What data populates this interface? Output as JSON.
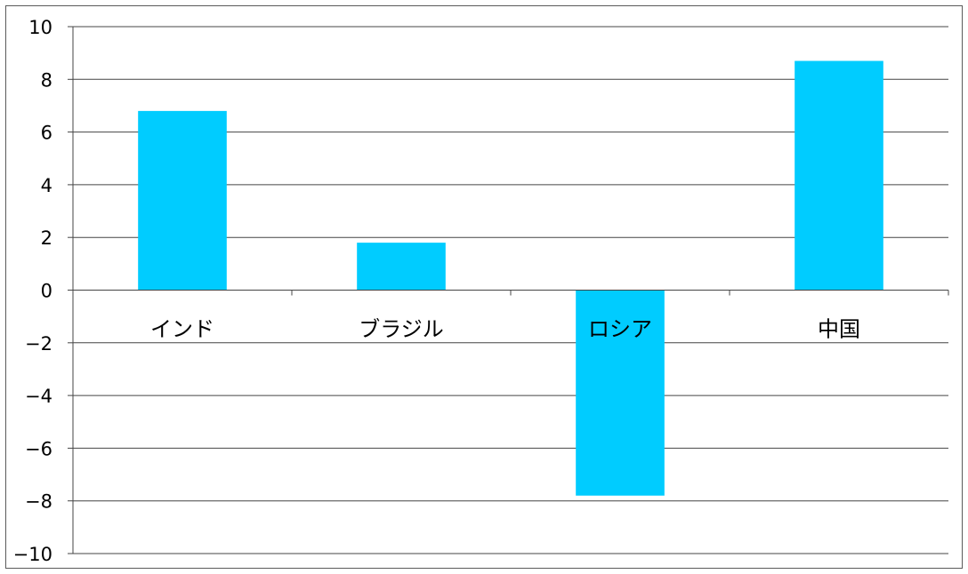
{
  "chart_data": {
    "type": "bar",
    "categories": [
      "インド",
      "ブラジル",
      "ロシア",
      "中国"
    ],
    "values": [
      6.8,
      1.8,
      -7.8,
      8.7
    ],
    "ylim": [
      -10,
      10
    ],
    "yticks": [
      "10",
      "8",
      "6",
      "4",
      "2",
      "0",
      "−2",
      "−4",
      "−6",
      "−8",
      "−10"
    ],
    "grid": true,
    "legend": "none",
    "bar_color": "#00ccff",
    "grid_color": "#444444"
  }
}
